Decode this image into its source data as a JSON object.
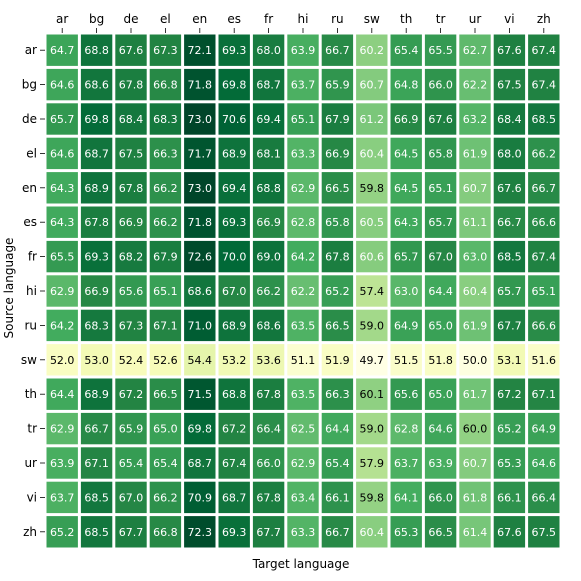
{
  "chart_data": {
    "type": "heatmap",
    "title": "",
    "xlabel": "Target language",
    "ylabel": "Source language",
    "x_categories": [
      "ar",
      "bg",
      "de",
      "el",
      "en",
      "es",
      "fr",
      "hi",
      "ru",
      "sw",
      "th",
      "tr",
      "ur",
      "vi",
      "zh"
    ],
    "y_categories": [
      "ar",
      "bg",
      "de",
      "el",
      "en",
      "es",
      "fr",
      "hi",
      "ru",
      "sw",
      "th",
      "tr",
      "ur",
      "vi",
      "zh"
    ],
    "x_tick_position": "top",
    "colormap": "YlGn",
    "color_range": [
      49.7,
      73.0
    ],
    "values": [
      [
        64.7,
        68.8,
        67.6,
        67.3,
        72.1,
        69.3,
        68.0,
        63.9,
        66.7,
        60.2,
        65.4,
        65.5,
        62.7,
        67.6,
        67.4
      ],
      [
        64.6,
        68.6,
        67.8,
        66.8,
        71.8,
        69.8,
        68.7,
        63.7,
        65.9,
        60.7,
        64.8,
        66.0,
        62.2,
        67.5,
        67.4
      ],
      [
        65.7,
        69.8,
        68.4,
        68.3,
        73.0,
        70.6,
        69.4,
        65.1,
        67.9,
        61.2,
        66.9,
        67.6,
        63.2,
        68.4,
        68.5
      ],
      [
        64.6,
        68.7,
        67.5,
        66.3,
        71.7,
        68.9,
        68.1,
        63.3,
        66.9,
        60.4,
        64.5,
        65.8,
        61.9,
        68.0,
        66.2
      ],
      [
        64.3,
        68.9,
        67.8,
        66.2,
        73.0,
        69.4,
        68.8,
        62.9,
        66.5,
        59.8,
        64.5,
        65.1,
        60.7,
        67.6,
        66.7
      ],
      [
        64.3,
        67.8,
        66.9,
        66.2,
        71.8,
        69.3,
        66.9,
        62.8,
        65.8,
        60.5,
        64.3,
        65.7,
        61.1,
        66.7,
        66.6
      ],
      [
        65.5,
        69.3,
        68.2,
        67.9,
        72.6,
        70.0,
        69.0,
        64.2,
        67.8,
        60.6,
        65.7,
        67.0,
        63.0,
        68.5,
        67.4
      ],
      [
        62.9,
        66.9,
        65.6,
        65.1,
        68.6,
        67.0,
        66.2,
        62.2,
        65.2,
        57.4,
        63.0,
        64.4,
        60.4,
        65.7,
        65.1
      ],
      [
        64.2,
        68.3,
        67.3,
        67.1,
        71.0,
        68.9,
        68.6,
        63.5,
        66.5,
        59.0,
        64.9,
        65.0,
        61.9,
        67.7,
        66.6
      ],
      [
        52.0,
        53.0,
        52.4,
        52.6,
        54.4,
        53.2,
        53.6,
        51.1,
        51.9,
        49.7,
        51.5,
        51.8,
        50.0,
        53.1,
        51.6
      ],
      [
        64.4,
        68.9,
        67.2,
        66.5,
        71.5,
        68.8,
        67.8,
        63.5,
        66.3,
        60.1,
        65.6,
        65.0,
        61.7,
        67.2,
        67.1
      ],
      [
        62.9,
        66.7,
        65.9,
        65.0,
        69.8,
        67.2,
        66.4,
        62.5,
        64.4,
        59.0,
        62.8,
        64.6,
        60.0,
        65.2,
        64.9
      ],
      [
        63.9,
        67.1,
        65.4,
        65.4,
        68.7,
        67.4,
        66.0,
        62.9,
        65.4,
        57.9,
        63.7,
        63.9,
        60.7,
        65.3,
        64.6
      ],
      [
        63.7,
        68.5,
        67.0,
        66.2,
        70.9,
        68.7,
        67.8,
        63.4,
        66.1,
        59.8,
        64.1,
        66.0,
        61.8,
        66.1,
        66.4
      ],
      [
        65.2,
        68.5,
        67.7,
        66.8,
        72.3,
        69.3,
        67.7,
        63.3,
        66.7,
        60.4,
        65.3,
        66.5,
        61.4,
        67.6,
        67.5
      ]
    ]
  }
}
